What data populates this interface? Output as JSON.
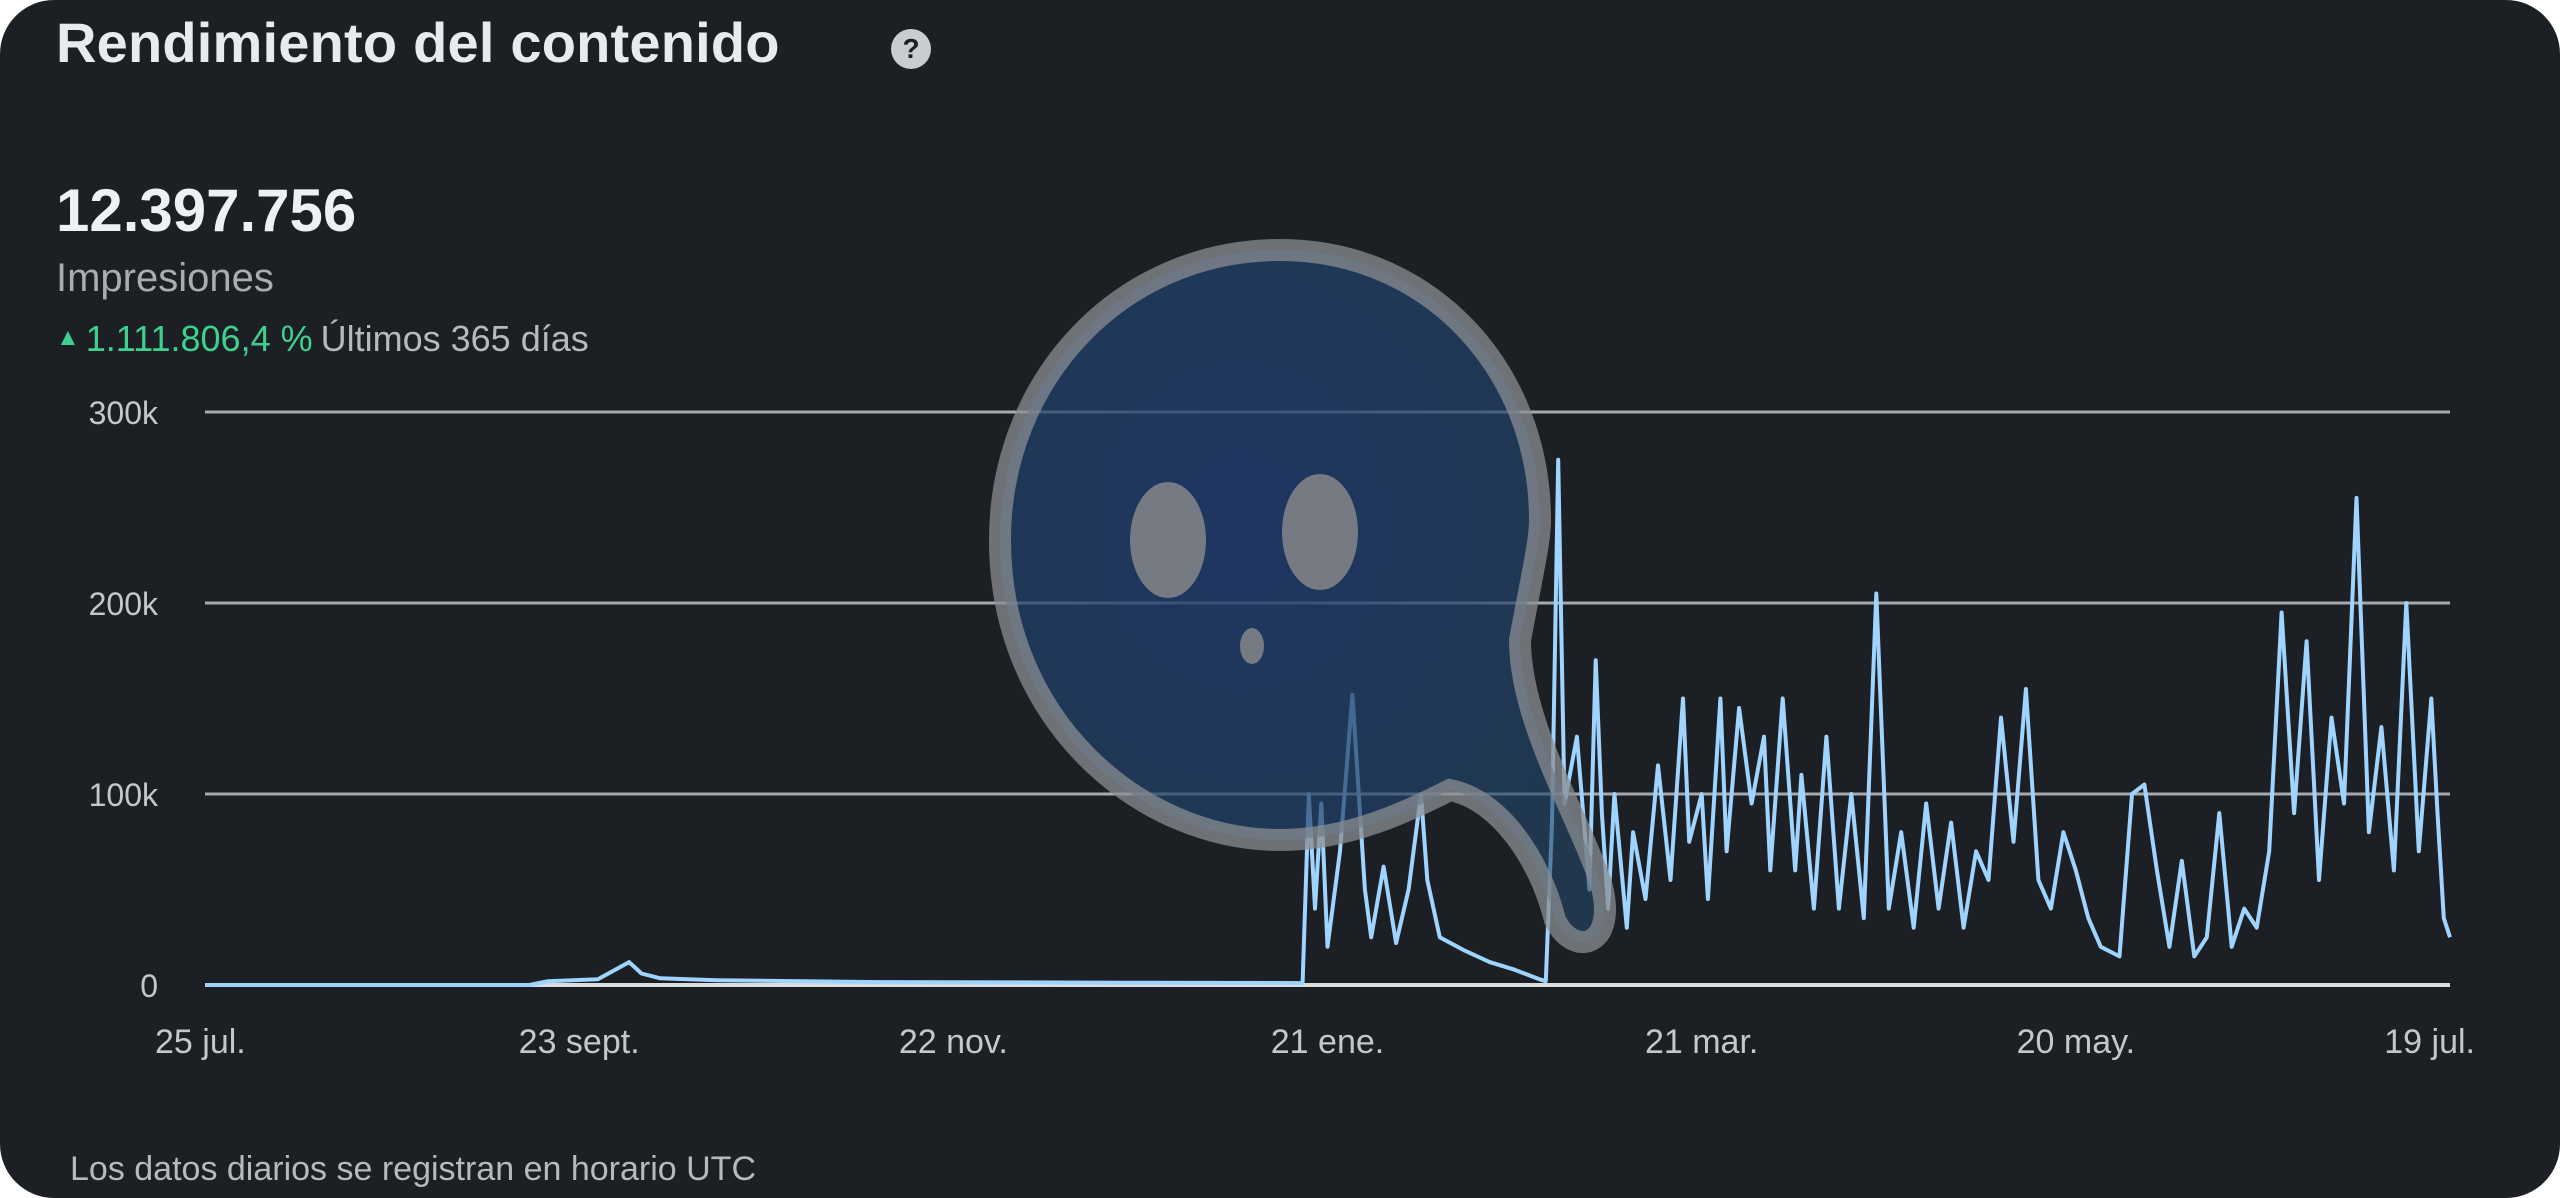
{
  "card": {
    "title": "Rendimiento del contenido",
    "help_icon": "question-circle-icon"
  },
  "metric": {
    "value": "12.397.756",
    "label": "Impresiones",
    "change_icon": "triangle-up-icon",
    "change_value": "1.111.806,4 %",
    "period": "Últimos 365 días"
  },
  "footnote": "Los datos diarios se registran en horario UTC",
  "colors": {
    "background": "#1c1f23",
    "line": "#9fd4ff",
    "positive": "#3fcf8e",
    "grid": "#c9ccd0"
  },
  "chart_data": {
    "type": "line",
    "x_scale": "date",
    "xlim": [
      "2023-07-25",
      "2024-07-19"
    ],
    "ylim": [
      0,
      300000
    ],
    "y_ticks": [
      0,
      100000,
      200000,
      300000
    ],
    "y_tick_labels": [
      "0",
      "100k",
      "200k",
      "300k"
    ],
    "x_ticks": [
      "2023-07-25",
      "2023-09-23",
      "2023-11-22",
      "2024-01-21",
      "2024-03-21",
      "2024-05-20",
      "2024-07-19"
    ],
    "x_tick_labels": [
      "25 jul.",
      "23 sept.",
      "22 nov.",
      "21 ene.",
      "21 mar.",
      "20 may.",
      "19 jul."
    ],
    "grid": true,
    "series": [
      {
        "color": "#9fd4ff",
        "points": [
          [
            "2023-07-25",
            0
          ],
          [
            "2023-09-15",
            0
          ],
          [
            "2023-09-18",
            2000
          ],
          [
            "2023-09-26",
            3000
          ],
          [
            "2023-10-01",
            12000
          ],
          [
            "2023-10-03",
            6000
          ],
          [
            "2023-10-06",
            3500
          ],
          [
            "2023-10-15",
            2500
          ],
          [
            "2023-11-10",
            1500
          ],
          [
            "2023-12-20",
            1200
          ],
          [
            "2024-01-17",
            1000
          ],
          [
            "2024-01-18",
            100000
          ],
          [
            "2024-01-19",
            40000
          ],
          [
            "2024-01-20",
            95000
          ],
          [
            "2024-01-21",
            20000
          ],
          [
            "2024-01-23",
            70000
          ],
          [
            "2024-01-25",
            152000
          ],
          [
            "2024-01-27",
            50000
          ],
          [
            "2024-01-28",
            25000
          ],
          [
            "2024-01-30",
            62000
          ],
          [
            "2024-02-01",
            22000
          ],
          [
            "2024-02-03",
            50000
          ],
          [
            "2024-02-05",
            100000
          ],
          [
            "2024-02-06",
            55000
          ],
          [
            "2024-02-08",
            25000
          ],
          [
            "2024-02-12",
            18000
          ],
          [
            "2024-02-16",
            12000
          ],
          [
            "2024-02-20",
            8000
          ],
          [
            "2024-02-24",
            3000
          ],
          [
            "2024-02-25",
            2000
          ],
          [
            "2024-02-26",
            85000
          ],
          [
            "2024-02-27",
            275000
          ],
          [
            "2024-02-28",
            95000
          ],
          [
            "2024-03-01",
            130000
          ],
          [
            "2024-03-03",
            50000
          ],
          [
            "2024-03-04",
            170000
          ],
          [
            "2024-03-05",
            90000
          ],
          [
            "2024-03-06",
            40000
          ],
          [
            "2024-03-07",
            100000
          ],
          [
            "2024-03-09",
            30000
          ],
          [
            "2024-03-10",
            80000
          ],
          [
            "2024-03-12",
            45000
          ],
          [
            "2024-03-14",
            115000
          ],
          [
            "2024-03-16",
            55000
          ],
          [
            "2024-03-18",
            150000
          ],
          [
            "2024-03-19",
            75000
          ],
          [
            "2024-03-21",
            100000
          ],
          [
            "2024-03-22",
            45000
          ],
          [
            "2024-03-24",
            150000
          ],
          [
            "2024-03-25",
            70000
          ],
          [
            "2024-03-27",
            145000
          ],
          [
            "2024-03-29",
            95000
          ],
          [
            "2024-03-31",
            130000
          ],
          [
            "2024-04-01",
            60000
          ],
          [
            "2024-04-03",
            150000
          ],
          [
            "2024-04-05",
            60000
          ],
          [
            "2024-04-06",
            110000
          ],
          [
            "2024-04-08",
            40000
          ],
          [
            "2024-04-10",
            130000
          ],
          [
            "2024-04-12",
            40000
          ],
          [
            "2024-04-14",
            100000
          ],
          [
            "2024-04-16",
            35000
          ],
          [
            "2024-04-18",
            205000
          ],
          [
            "2024-04-20",
            40000
          ],
          [
            "2024-04-22",
            80000
          ],
          [
            "2024-04-24",
            30000
          ],
          [
            "2024-04-26",
            95000
          ],
          [
            "2024-04-28",
            40000
          ],
          [
            "2024-04-30",
            85000
          ],
          [
            "2024-05-02",
            30000
          ],
          [
            "2024-05-04",
            70000
          ],
          [
            "2024-05-06",
            55000
          ],
          [
            "2024-05-08",
            140000
          ],
          [
            "2024-05-10",
            75000
          ],
          [
            "2024-05-12",
            155000
          ],
          [
            "2024-05-14",
            55000
          ],
          [
            "2024-05-16",
            40000
          ],
          [
            "2024-05-18",
            80000
          ],
          [
            "2024-05-20",
            60000
          ],
          [
            "2024-05-22",
            35000
          ],
          [
            "2024-05-24",
            20000
          ],
          [
            "2024-05-27",
            15000
          ],
          [
            "2024-05-29",
            100000
          ],
          [
            "2024-05-31",
            105000
          ],
          [
            "2024-06-02",
            60000
          ],
          [
            "2024-06-04",
            20000
          ],
          [
            "2024-06-06",
            65000
          ],
          [
            "2024-06-08",
            15000
          ],
          [
            "2024-06-10",
            25000
          ],
          [
            "2024-06-12",
            90000
          ],
          [
            "2024-06-14",
            20000
          ],
          [
            "2024-06-16",
            40000
          ],
          [
            "2024-06-18",
            30000
          ],
          [
            "2024-06-20",
            70000
          ],
          [
            "2024-06-22",
            195000
          ],
          [
            "2024-06-24",
            90000
          ],
          [
            "2024-06-26",
            180000
          ],
          [
            "2024-06-28",
            55000
          ],
          [
            "2024-06-30",
            140000
          ],
          [
            "2024-07-02",
            95000
          ],
          [
            "2024-07-04",
            255000
          ],
          [
            "2024-07-06",
            80000
          ],
          [
            "2024-07-08",
            135000
          ],
          [
            "2024-07-10",
            60000
          ],
          [
            "2024-07-12",
            200000
          ],
          [
            "2024-07-14",
            70000
          ],
          [
            "2024-07-16",
            150000
          ],
          [
            "2024-07-17",
            90000
          ],
          [
            "2024-07-18",
            35000
          ],
          [
            "2024-07-19",
            25000
          ]
        ]
      }
    ]
  }
}
